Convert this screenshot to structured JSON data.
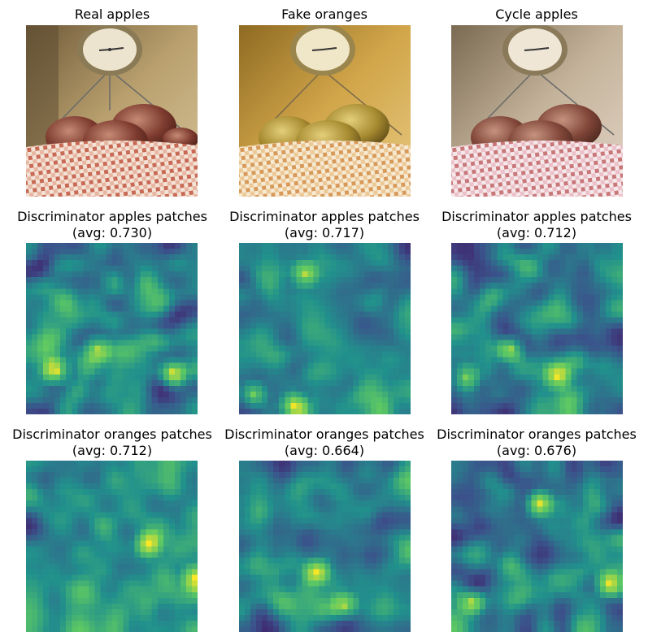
{
  "panels": [
    {
      "title": "Real apples"
    },
    {
      "title": "Fake oranges"
    },
    {
      "title": "Cycle apples"
    },
    {
      "title": "Discriminator apples patches",
      "avg_label": "(avg: 0.730)",
      "avg": 0.73
    },
    {
      "title": "Discriminator apples patches",
      "avg_label": "(avg: 0.717)",
      "avg": 0.717
    },
    {
      "title": "Discriminator apples patches",
      "avg_label": "(avg: 0.712)",
      "avg": 0.712
    },
    {
      "title": "Discriminator oranges patches",
      "avg_label": "(avg: 0.712)",
      "avg": 0.712
    },
    {
      "title": "Discriminator oranges patches",
      "avg_label": "(avg: 0.664)",
      "avg": 0.664
    },
    {
      "title": "Discriminator oranges patches",
      "avg_label": "(avg: 0.676)",
      "avg": 0.676
    }
  ],
  "colormap": "viridis"
}
